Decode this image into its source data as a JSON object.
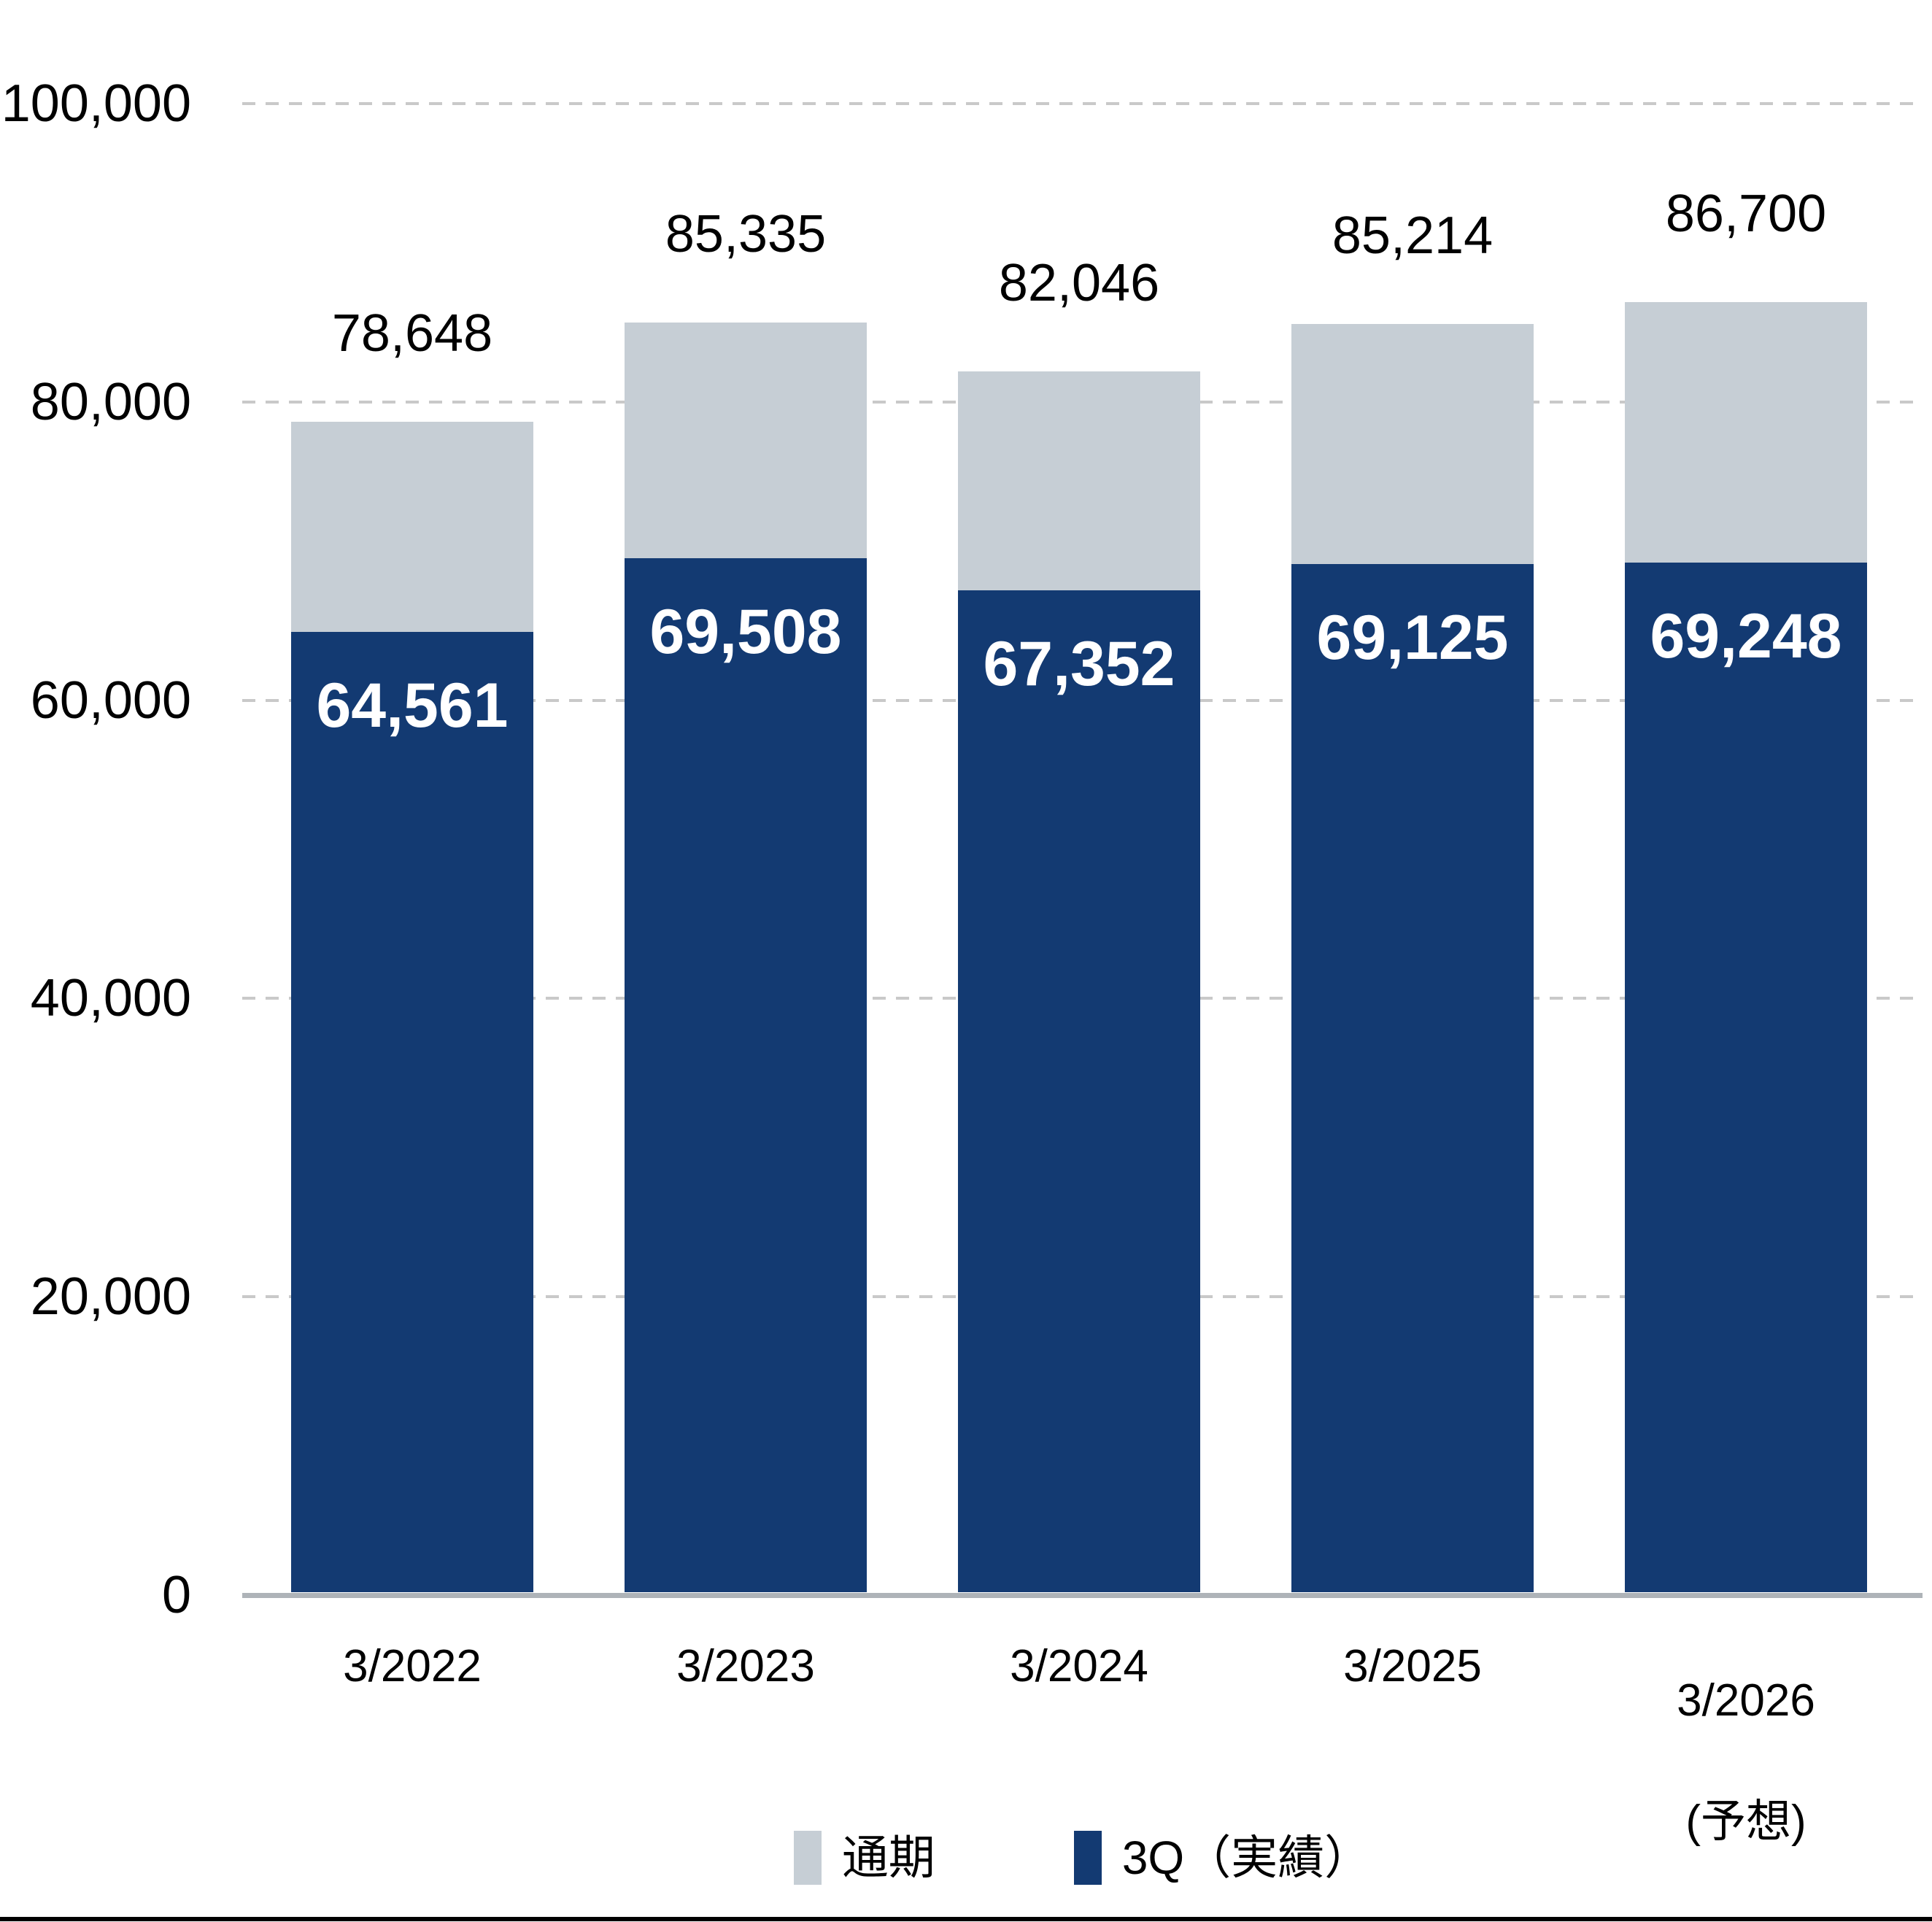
{
  "chart_data": {
    "type": "bar",
    "stacked": true,
    "categories": [
      "3/2022",
      "3/2023",
      "3/2024",
      "3/2025",
      "3/2026"
    ],
    "category_notes": [
      "",
      "",
      "",
      "",
      "(予想)"
    ],
    "series": [
      {
        "name": "通期",
        "role": "full-year-total",
        "color_key": "gray",
        "values": [
          78648,
          85335,
          82046,
          85214,
          86700
        ]
      },
      {
        "name": "3Q（実績）",
        "role": "q3-actual",
        "color_key": "navy",
        "values": [
          64561,
          69508,
          67352,
          69125,
          69248
        ]
      }
    ],
    "value_labels": {
      "above_bar_totals": [
        "78,648",
        "85,335",
        "82,046",
        "85,214",
        "86,700"
      ],
      "inside_bar_q3": [
        "64,561",
        "69,508",
        "67,352",
        "69,125",
        "69,248"
      ]
    },
    "ylim": [
      0,
      100000
    ],
    "ytick_interval": 20000,
    "ytick_labels": [
      "0",
      "20,000",
      "40,000",
      "60,000",
      "80,000",
      "100,000"
    ],
    "grid": "horizontal-dashed",
    "legend_position": "bottom-center"
  },
  "legend": {
    "items": [
      {
        "label": "通期",
        "color_key": "gray"
      },
      {
        "label": "3Q（実績）",
        "color_key": "navy"
      }
    ]
  },
  "colors": {
    "navy": "#133A72",
    "gray": "#C6CED5",
    "gridline": "#C9C9C9",
    "axis_line": "#AEB3B8",
    "text": "#000000",
    "bar_label_inside": "#FFFFFF",
    "bottom_border": "#000000"
  }
}
